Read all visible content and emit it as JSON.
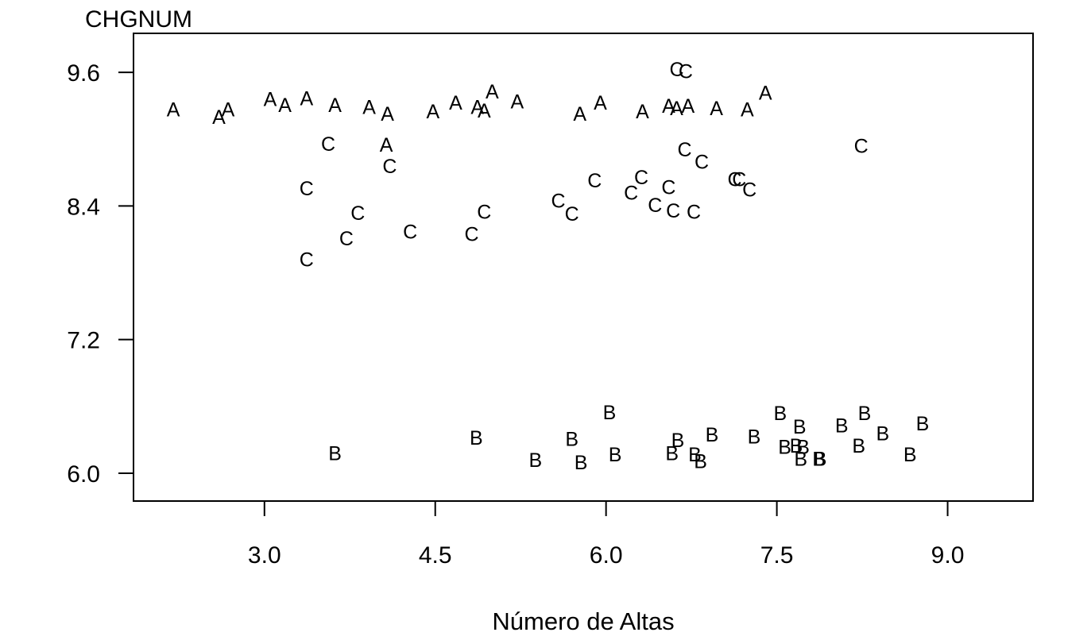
{
  "chart_data": {
    "type": "scatter",
    "title": "CHGNUM",
    "xlabel": "Número de Altas",
    "ylabel": "",
    "xlim": [
      1.85,
      9.75
    ],
    "ylim": [
      5.75,
      9.95
    ],
    "xticks": [
      3.0,
      4.5,
      6.0,
      7.5,
      9.0
    ],
    "xtick_labels": [
      "3.0",
      "4.5",
      "6.0",
      "7.5",
      "9.0"
    ],
    "yticks": [
      6.0,
      7.2,
      8.4,
      9.6
    ],
    "ytick_labels": [
      "6.0",
      "7.2",
      "8.4",
      "9.6"
    ],
    "grid": false,
    "legend": "none",
    "marker_type": "letter",
    "series": [
      {
        "label": "A",
        "x": [
          2.2,
          2.6,
          2.68,
          3.05,
          3.18,
          3.37,
          3.62,
          3.92,
          4.08,
          4.07,
          4.48,
          4.68,
          4.87,
          4.93,
          5.0,
          5.22,
          5.77,
          5.95,
          6.32,
          6.55,
          6.62,
          6.72,
          6.97,
          7.24,
          7.4
        ],
        "y": [
          9.27,
          9.2,
          9.27,
          9.36,
          9.31,
          9.37,
          9.31,
          9.29,
          9.23,
          8.95,
          9.25,
          9.33,
          9.29,
          9.26,
          9.43,
          9.34,
          9.23,
          9.33,
          9.25,
          9.3,
          9.28,
          9.3,
          9.28,
          9.27,
          9.42
        ]
      },
      {
        "label": "B",
        "x": [
          3.62,
          4.86,
          5.38,
          5.7,
          5.78,
          6.03,
          6.08,
          6.58,
          6.63,
          6.78,
          6.83,
          6.93,
          7.3,
          7.53,
          7.57,
          7.67,
          7.7,
          7.71,
          7.73,
          7.87,
          7.88,
          8.07,
          8.22,
          8.27,
          8.43,
          8.67,
          8.78
        ],
        "y": [
          6.18,
          6.32,
          6.12,
          6.31,
          6.1,
          6.55,
          6.17,
          6.18,
          6.3,
          6.17,
          6.11,
          6.35,
          6.33,
          6.54,
          6.24,
          6.25,
          6.42,
          6.13,
          6.24,
          6.13,
          6.13,
          6.43,
          6.25,
          6.54,
          6.36,
          6.17,
          6.45
        ]
      },
      {
        "label": "C",
        "x": [
          3.37,
          3.37,
          3.56,
          3.72,
          3.82,
          4.1,
          4.28,
          4.82,
          4.93,
          5.58,
          5.7,
          5.9,
          6.22,
          6.31,
          6.43,
          6.55,
          6.59,
          6.62,
          6.69,
          6.7,
          6.77,
          6.84,
          7.13,
          7.17,
          7.26,
          8.24
        ],
        "y": [
          7.92,
          8.56,
          8.96,
          8.11,
          8.34,
          8.76,
          8.17,
          8.15,
          8.35,
          8.45,
          8.33,
          8.63,
          8.52,
          8.66,
          8.41,
          8.57,
          8.36,
          9.63,
          8.91,
          9.61,
          8.35,
          8.8,
          8.64,
          8.64,
          8.55,
          8.94
        ]
      }
    ]
  }
}
